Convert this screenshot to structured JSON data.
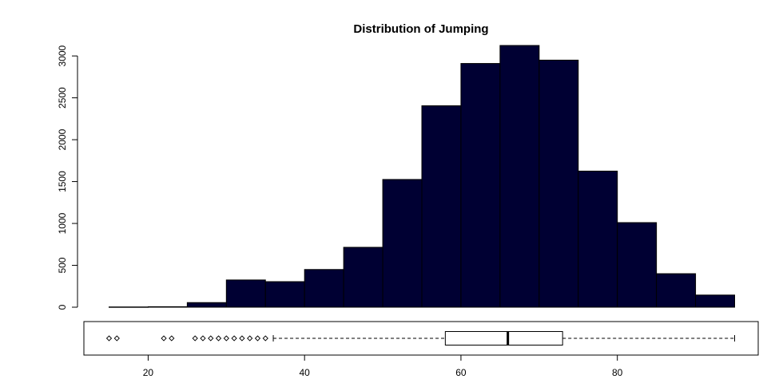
{
  "chart_data": {
    "type": "bar",
    "title": "Distribution of Jumping",
    "xlabel": "",
    "ylabel": "",
    "bar_color": "#000033",
    "bin_edges": [
      15,
      20,
      25,
      30,
      35,
      40,
      45,
      50,
      55,
      60,
      65,
      70,
      75,
      80,
      85,
      90,
      95
    ],
    "values": [
      3,
      6,
      55,
      325,
      305,
      450,
      715,
      1525,
      2405,
      2910,
      3125,
      2950,
      1625,
      1010,
      400,
      145
    ],
    "ylim": [
      0,
      3125
    ],
    "xlim": [
      15,
      95
    ],
    "y_ticks": [
      "0",
      "500",
      "1000",
      "1500",
      "2000",
      "2500",
      "3000"
    ],
    "x_ticks": [
      "20",
      "40",
      "60",
      "80"
    ],
    "boxplot": {
      "whisker_low": 36,
      "q1": 58,
      "median": 66,
      "q3": 73,
      "whisker_high": 95,
      "outliers": [
        15,
        16,
        22,
        23,
        26,
        27,
        28,
        29,
        30,
        31,
        32,
        33,
        34,
        35
      ]
    }
  }
}
